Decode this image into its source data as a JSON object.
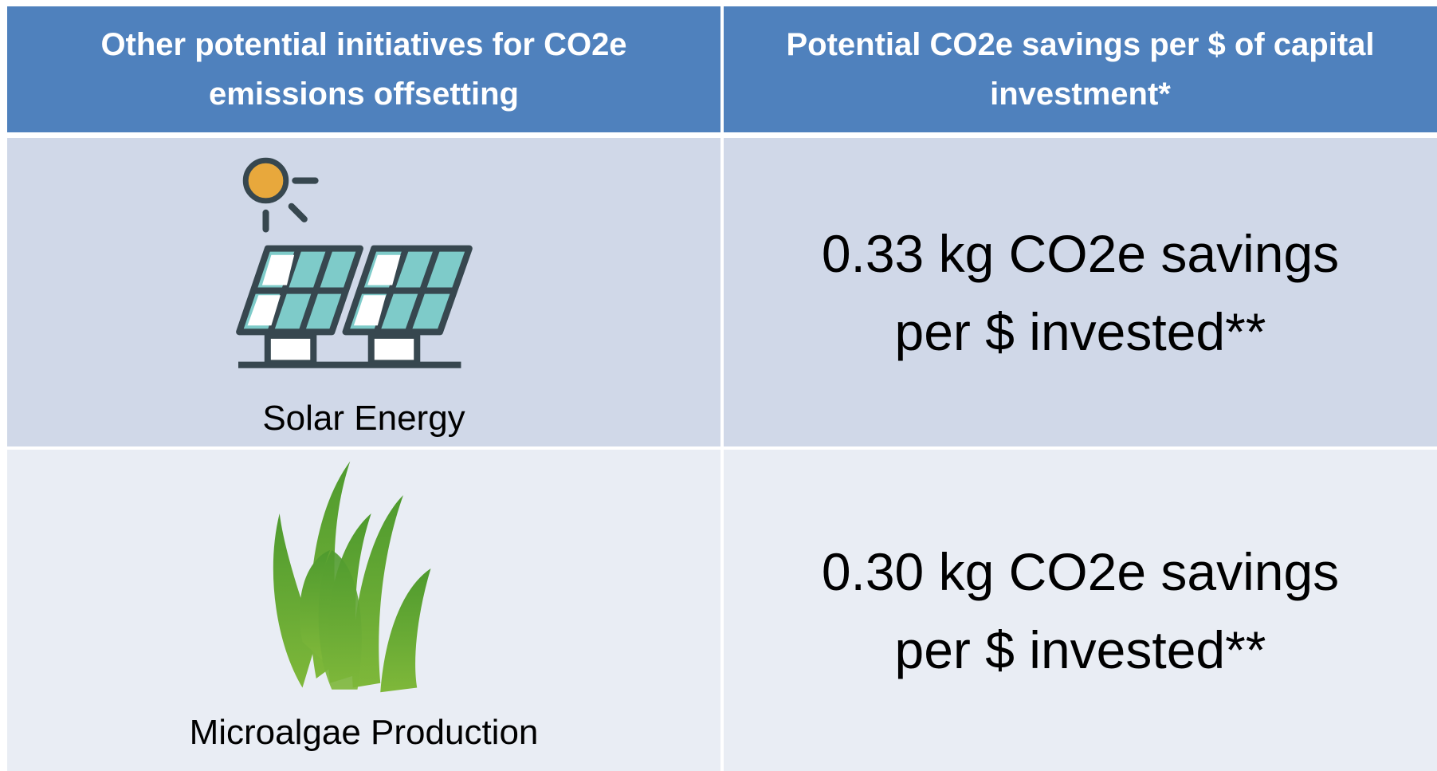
{
  "table": {
    "header": [
      "Other potential initiatives for CO2e emissions offsetting",
      "Potential CO2e savings per $ of capital investment*"
    ],
    "rows": [
      {
        "label": "Solar Energy",
        "value": "0.33 kg CO2e savings per $ invested**"
      },
      {
        "label": "Microalgae Production",
        "value": "0.30 kg CO2e savings per $ invested**"
      }
    ]
  }
}
